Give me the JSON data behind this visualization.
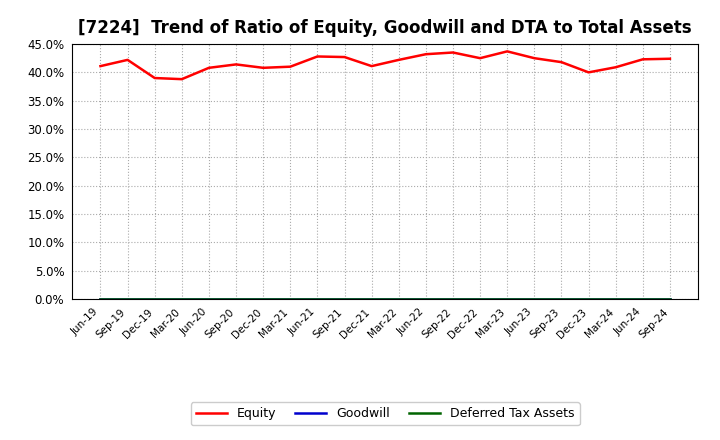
{
  "title": "[7224]  Trend of Ratio of Equity, Goodwill and DTA to Total Assets",
  "x_labels": [
    "Jun-19",
    "Sep-19",
    "Dec-19",
    "Mar-20",
    "Jun-20",
    "Sep-20",
    "Dec-20",
    "Mar-21",
    "Jun-21",
    "Sep-21",
    "Dec-21",
    "Mar-22",
    "Jun-22",
    "Sep-22",
    "Dec-22",
    "Mar-23",
    "Jun-23",
    "Sep-23",
    "Dec-23",
    "Mar-24",
    "Jun-24",
    "Sep-24"
  ],
  "equity": [
    0.411,
    0.422,
    0.39,
    0.388,
    0.408,
    0.414,
    0.408,
    0.41,
    0.428,
    0.427,
    0.411,
    0.422,
    0.432,
    0.435,
    0.425,
    0.437,
    0.425,
    0.418,
    0.4,
    0.409,
    0.423,
    0.424
  ],
  "goodwill": [
    0.0,
    0.0,
    0.0,
    0.0,
    0.0,
    0.0,
    0.0,
    0.0,
    0.0,
    0.0,
    0.0,
    0.0,
    0.0,
    0.0,
    0.0,
    0.0,
    0.0,
    0.0,
    0.0,
    0.0,
    0.0,
    0.0
  ],
  "dta": [
    0.0,
    0.0,
    0.0,
    0.0,
    0.0,
    0.0,
    0.0,
    0.0,
    0.0,
    0.0,
    0.0,
    0.0,
    0.0,
    0.0,
    0.0,
    0.0,
    0.0,
    0.0,
    0.0,
    0.0,
    0.0,
    0.0
  ],
  "equity_color": "#FF0000",
  "goodwill_color": "#0000CD",
  "dta_color": "#006400",
  "ylim": [
    0.0,
    0.45
  ],
  "yticks": [
    0.0,
    0.05,
    0.1,
    0.15,
    0.2,
    0.25,
    0.3,
    0.35,
    0.4,
    0.45
  ],
  "bg_color": "#FFFFFF",
  "plot_bg_color": "#FFFFFF",
  "grid_color": "#AAAAAA",
  "title_fontsize": 12,
  "legend_labels": [
    "Equity",
    "Goodwill",
    "Deferred Tax Assets"
  ]
}
